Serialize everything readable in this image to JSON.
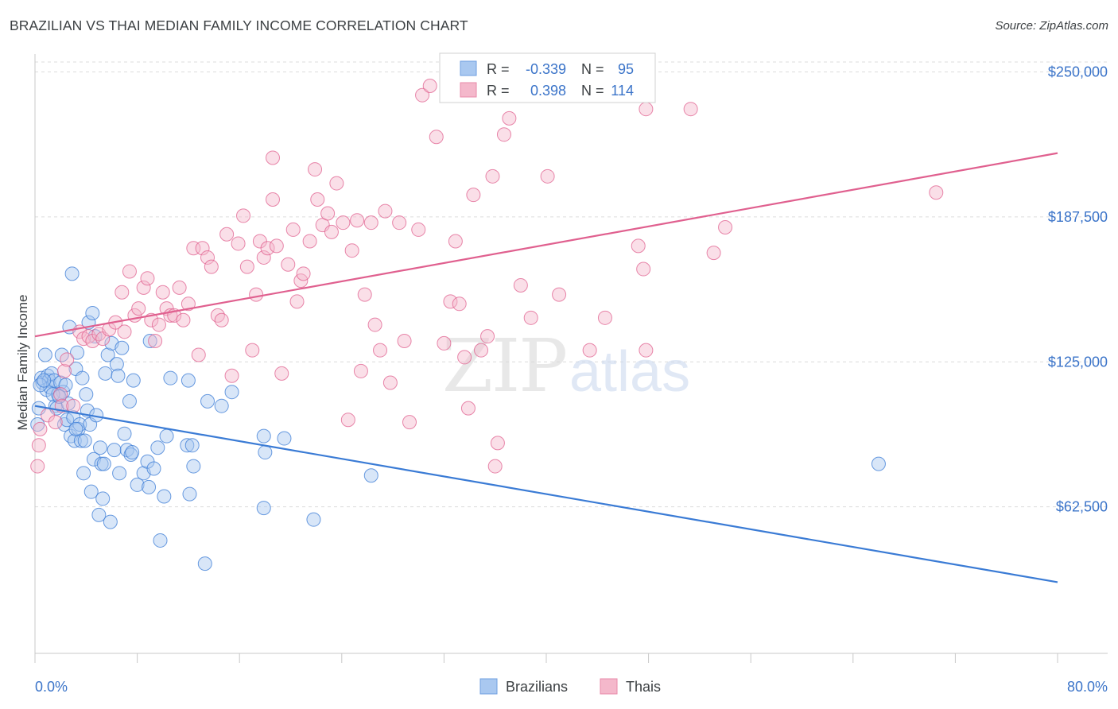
{
  "header": {
    "title": "BRAZILIAN VS THAI MEDIAN FAMILY INCOME CORRELATION CHART",
    "source": "Source: ZipAtlas.com"
  },
  "colors": {
    "blue": "#3a7bd5",
    "blue_fill": "#a9c8f0",
    "pink": "#e0608f",
    "pink_fill": "#f4b8cb",
    "axis_label_blue": "#3b74c9",
    "grid": "#dcdcdc"
  },
  "chart_data": {
    "type": "scatter",
    "xlabel": "",
    "ylabel": "Median Family Income",
    "xlim": [
      0,
      80
    ],
    "ylim": [
      0,
      256000
    ],
    "x_tick_labels": {
      "left": "0.0%",
      "right": "80.0%"
    },
    "y_ticks": [
      62500,
      125000,
      187500,
      250000
    ],
    "y_tick_labels": [
      "$62,500",
      "$125,000",
      "$187,500",
      "$250,000"
    ],
    "grid": "horizontal dashed",
    "watermark": "ZIPatlas",
    "legend_top": [
      {
        "series": "Brazilians",
        "r_label": "R =",
        "r_value": "-0.339",
        "n_label": "N =",
        "n_value": "95"
      },
      {
        "series": "Thais",
        "r_label": "R =",
        "r_value": "0.398",
        "n_label": "N =",
        "n_value": "114"
      }
    ],
    "legend_bottom": [
      "Brazilians",
      "Thais"
    ],
    "series": [
      {
        "name": "Brazilians",
        "trend": {
          "x0": 0,
          "y0": 106000,
          "x1": 80,
          "y1": 30000
        },
        "points": [
          [
            0.3,
            105000
          ],
          [
            0.5,
            118000
          ],
          [
            0.6,
            116000
          ],
          [
            0.8,
            128000
          ],
          [
            0.9,
            113000
          ],
          [
            1.0,
            119000
          ],
          [
            1.1,
            117000
          ],
          [
            1.2,
            114000
          ],
          [
            1.3,
            120000
          ],
          [
            1.5,
            117000
          ],
          [
            1.6,
            106000
          ],
          [
            1.7,
            105000
          ],
          [
            1.8,
            111000
          ],
          [
            2.0,
            116000
          ],
          [
            2.1,
            128000
          ],
          [
            2.2,
            112000
          ],
          [
            2.3,
            98000
          ],
          [
            2.4,
            115000
          ],
          [
            2.5,
            100000
          ],
          [
            2.6,
            107000
          ],
          [
            2.7,
            140000
          ],
          [
            2.8,
            93000
          ],
          [
            2.9,
            163000
          ],
          [
            3.0,
            101000
          ],
          [
            3.1,
            91000
          ],
          [
            3.2,
            122000
          ],
          [
            3.3,
            129000
          ],
          [
            3.4,
            96000
          ],
          [
            3.5,
            98000
          ],
          [
            3.6,
            91000
          ],
          [
            3.7,
            118000
          ],
          [
            3.8,
            77000
          ],
          [
            3.9,
            91000
          ],
          [
            4.0,
            111000
          ],
          [
            4.1,
            104000
          ],
          [
            4.2,
            142000
          ],
          [
            4.3,
            98000
          ],
          [
            4.4,
            69000
          ],
          [
            4.5,
            146000
          ],
          [
            4.6,
            83000
          ],
          [
            4.7,
            136000
          ],
          [
            4.8,
            102000
          ],
          [
            5.0,
            59000
          ],
          [
            5.1,
            88000
          ],
          [
            5.2,
            81000
          ],
          [
            5.3,
            66000
          ],
          [
            5.4,
            81000
          ],
          [
            5.5,
            120000
          ],
          [
            5.7,
            128000
          ],
          [
            5.9,
            56000
          ],
          [
            6.0,
            133000
          ],
          [
            6.2,
            87000
          ],
          [
            6.4,
            124000
          ],
          [
            6.5,
            119000
          ],
          [
            6.6,
            77000
          ],
          [
            6.8,
            131000
          ],
          [
            7.0,
            94000
          ],
          [
            7.2,
            87000
          ],
          [
            7.4,
            108000
          ],
          [
            7.5,
            85000
          ],
          [
            7.6,
            86000
          ],
          [
            7.7,
            117000
          ],
          [
            8.0,
            72000
          ],
          [
            8.5,
            77000
          ],
          [
            8.8,
            82000
          ],
          [
            8.9,
            71000
          ],
          [
            9.0,
            134000
          ],
          [
            9.3,
            79000
          ],
          [
            9.6,
            88000
          ],
          [
            9.8,
            48000
          ],
          [
            10.1,
            67000
          ],
          [
            10.3,
            93000
          ],
          [
            10.6,
            118000
          ],
          [
            11.9,
            89000
          ],
          [
            12.0,
            117000
          ],
          [
            12.1,
            68000
          ],
          [
            12.3,
            89000
          ],
          [
            12.4,
            80000
          ],
          [
            13.3,
            38000
          ],
          [
            13.5,
            108000
          ],
          [
            14.6,
            106000
          ],
          [
            15.4,
            112000
          ],
          [
            17.9,
            93000
          ],
          [
            17.9,
            62000
          ],
          [
            18.0,
            86000
          ],
          [
            19.5,
            92000
          ],
          [
            21.8,
            57000
          ],
          [
            26.3,
            76000
          ],
          [
            66.0,
            81000
          ],
          [
            0.2,
            98000
          ],
          [
            0.4,
            115000
          ],
          [
            0.7,
            117000
          ],
          [
            1.4,
            111000
          ],
          [
            1.9,
            110000
          ],
          [
            3.2,
            96000
          ]
        ]
      },
      {
        "name": "Thais",
        "trend": {
          "x0": 0,
          "y0": 136000,
          "x1": 80,
          "y1": 215000
        },
        "points": [
          [
            0.2,
            80000
          ],
          [
            0.3,
            89000
          ],
          [
            0.4,
            96000
          ],
          [
            1.0,
            102000
          ],
          [
            1.6,
            99000
          ],
          [
            2.0,
            111000
          ],
          [
            2.1,
            106000
          ],
          [
            2.3,
            121000
          ],
          [
            2.5,
            126000
          ],
          [
            3.0,
            106000
          ],
          [
            3.5,
            138000
          ],
          [
            3.8,
            135000
          ],
          [
            4.2,
            136000
          ],
          [
            4.5,
            134000
          ],
          [
            5.0,
            137000
          ],
          [
            5.3,
            135000
          ],
          [
            5.8,
            139000
          ],
          [
            6.3,
            142000
          ],
          [
            6.8,
            155000
          ],
          [
            7.0,
            138000
          ],
          [
            7.4,
            164000
          ],
          [
            7.8,
            145000
          ],
          [
            8.1,
            148000
          ],
          [
            8.5,
            157000
          ],
          [
            8.8,
            161000
          ],
          [
            9.1,
            143000
          ],
          [
            9.4,
            134000
          ],
          [
            9.7,
            141000
          ],
          [
            10.0,
            155000
          ],
          [
            10.3,
            148000
          ],
          [
            10.6,
            145000
          ],
          [
            10.9,
            145000
          ],
          [
            11.3,
            157000
          ],
          [
            11.6,
            143000
          ],
          [
            12.0,
            150000
          ],
          [
            12.4,
            174000
          ],
          [
            12.8,
            128000
          ],
          [
            13.1,
            174000
          ],
          [
            13.5,
            170000
          ],
          [
            13.8,
            166000
          ],
          [
            14.3,
            145000
          ],
          [
            14.6,
            143000
          ],
          [
            15.0,
            180000
          ],
          [
            15.4,
            119000
          ],
          [
            15.9,
            176000
          ],
          [
            16.3,
            188000
          ],
          [
            16.6,
            166000
          ],
          [
            17.0,
            130000
          ],
          [
            17.3,
            154000
          ],
          [
            17.6,
            177000
          ],
          [
            17.9,
            170000
          ],
          [
            18.2,
            174000
          ],
          [
            18.6,
            213000
          ],
          [
            18.9,
            175000
          ],
          [
            19.3,
            120000
          ],
          [
            19.8,
            167000
          ],
          [
            20.2,
            182000
          ],
          [
            20.5,
            151000
          ],
          [
            20.8,
            160000
          ],
          [
            21.0,
            163000
          ],
          [
            21.5,
            177000
          ],
          [
            21.9,
            208000
          ],
          [
            22.1,
            195000
          ],
          [
            22.5,
            184000
          ],
          [
            22.9,
            189000
          ],
          [
            23.2,
            181000
          ],
          [
            23.6,
            202000
          ],
          [
            24.1,
            185000
          ],
          [
            24.5,
            100000
          ],
          [
            24.8,
            173000
          ],
          [
            25.2,
            186000
          ],
          [
            25.5,
            121000
          ],
          [
            25.8,
            154000
          ],
          [
            26.3,
            185000
          ],
          [
            26.6,
            141000
          ],
          [
            27.0,
            130000
          ],
          [
            27.4,
            190000
          ],
          [
            27.8,
            116000
          ],
          [
            28.5,
            185000
          ],
          [
            28.9,
            134000
          ],
          [
            29.3,
            99000
          ],
          [
            30.0,
            182000
          ],
          [
            30.3,
            240000
          ],
          [
            30.9,
            244000
          ],
          [
            31.4,
            222000
          ],
          [
            32.0,
            133000
          ],
          [
            32.5,
            151000
          ],
          [
            32.9,
            177000
          ],
          [
            33.2,
            150000
          ],
          [
            33.6,
            127000
          ],
          [
            33.9,
            105000
          ],
          [
            34.3,
            197000
          ],
          [
            34.9,
            130000
          ],
          [
            35.4,
            136000
          ],
          [
            35.8,
            205000
          ],
          [
            36.2,
            90000
          ],
          [
            36.7,
            223000
          ],
          [
            37.1,
            230000
          ],
          [
            38.0,
            158000
          ],
          [
            38.8,
            144000
          ],
          [
            40.1,
            205000
          ],
          [
            41.0,
            154000
          ],
          [
            43.4,
            130000
          ],
          [
            44.6,
            144000
          ],
          [
            47.2,
            175000
          ],
          [
            47.6,
            165000
          ],
          [
            47.8,
            234000
          ],
          [
            51.3,
            234000
          ],
          [
            53.1,
            172000
          ],
          [
            54.0,
            183000
          ],
          [
            70.5,
            198000
          ],
          [
            18.6,
            195000
          ],
          [
            36.0,
            80000
          ],
          [
            47.8,
            130000
          ]
        ]
      }
    ]
  }
}
